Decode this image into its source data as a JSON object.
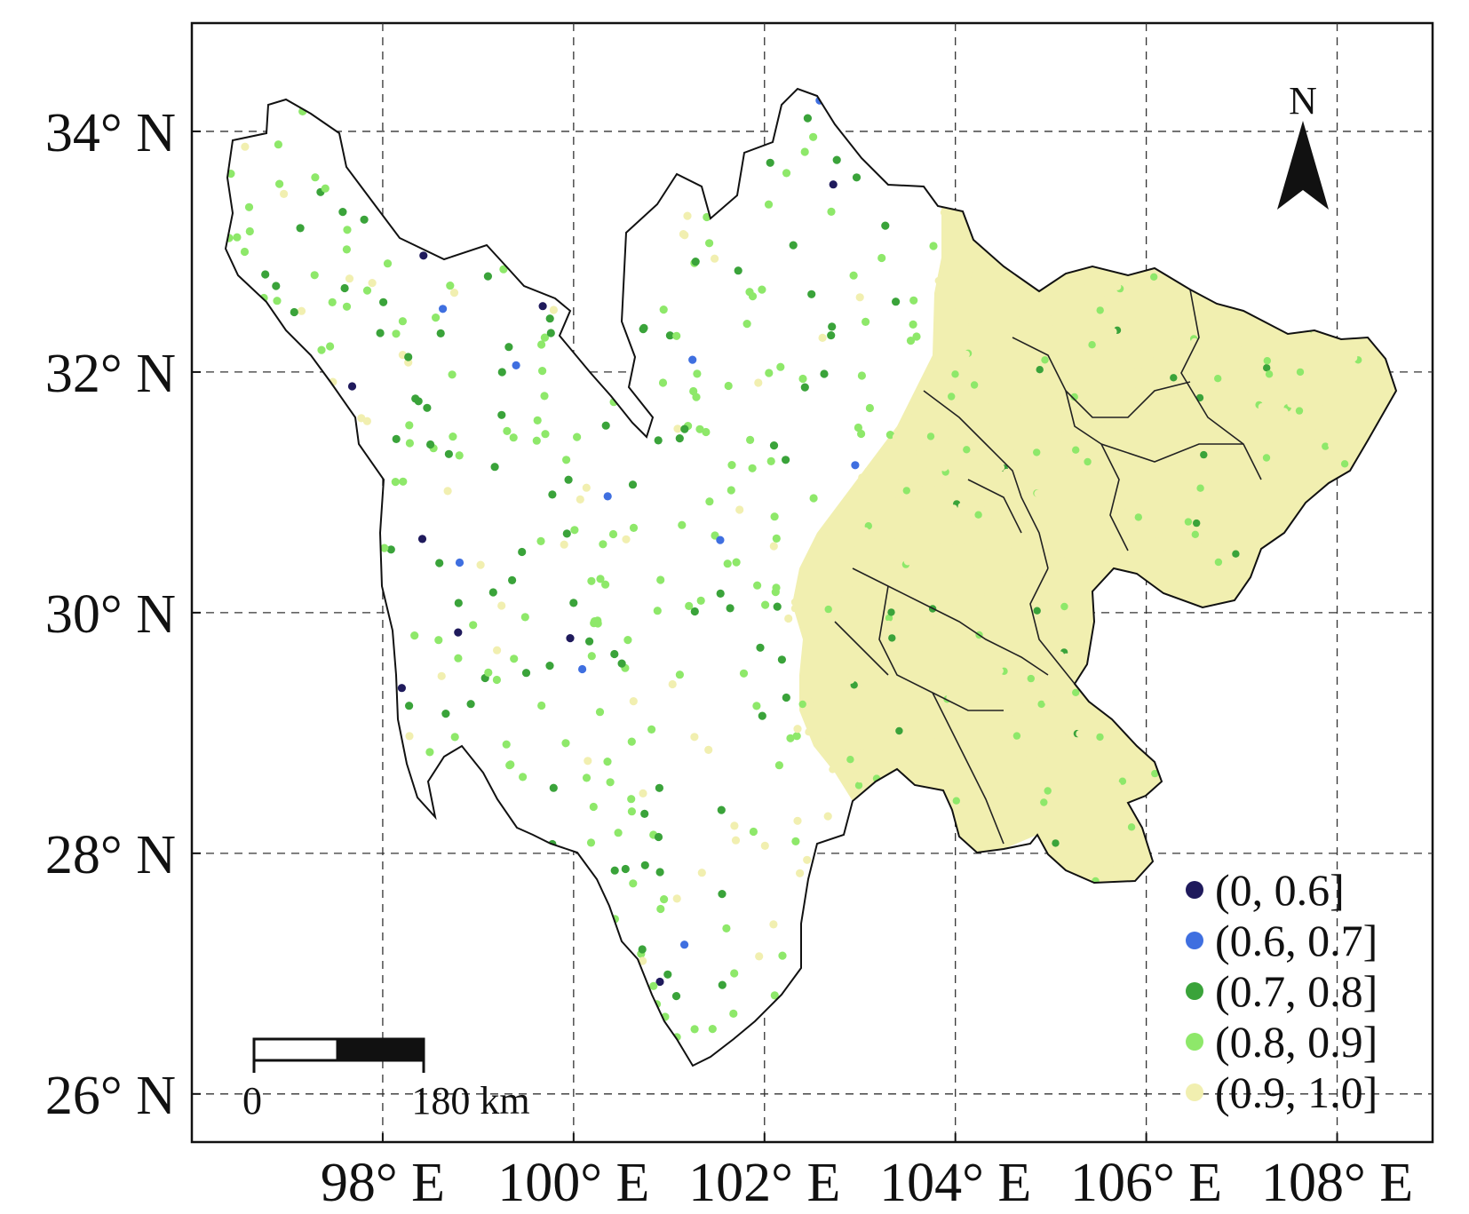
{
  "map": {
    "x_axis": {
      "range_deg_E": [
        96.0,
        109.0
      ],
      "ticks": [
        {
          "value": 98,
          "label": "98° E"
        },
        {
          "value": 100,
          "label": "100° E"
        },
        {
          "value": 102,
          "label": "102° E"
        },
        {
          "value": 104,
          "label": "104° E"
        },
        {
          "value": 106,
          "label": "106° E"
        },
        {
          "value": 108,
          "label": "108° E"
        }
      ]
    },
    "y_axis": {
      "range_deg_N": [
        25.6,
        34.9
      ],
      "ticks": [
        {
          "value": 26,
          "label": "26° N"
        },
        {
          "value": 28,
          "label": "28° N"
        },
        {
          "value": 30,
          "label": "30° N"
        },
        {
          "value": 32,
          "label": "32° N"
        },
        {
          "value": 34,
          "label": "34° N"
        }
      ]
    },
    "grid": true,
    "north_arrow": {
      "label": "N",
      "icon": "north-arrow-icon"
    },
    "scale_bar": {
      "start_label": "0",
      "end_label": "180 km"
    },
    "legend": {
      "placement": "bottom-right",
      "entries": [
        {
          "label": "(0, 0.6]",
          "color": "#1f1a5c"
        },
        {
          "label": "(0.6, 0.7]",
          "color": "#3f6fe0"
        },
        {
          "label": "(0.7, 0.8]",
          "color": "#3aa33a"
        },
        {
          "label": "(0.8, 0.9]",
          "color": "#8ee86a"
        },
        {
          "label": "(0.9, 1.0]",
          "color": "#f1efb0"
        }
      ]
    }
  }
}
